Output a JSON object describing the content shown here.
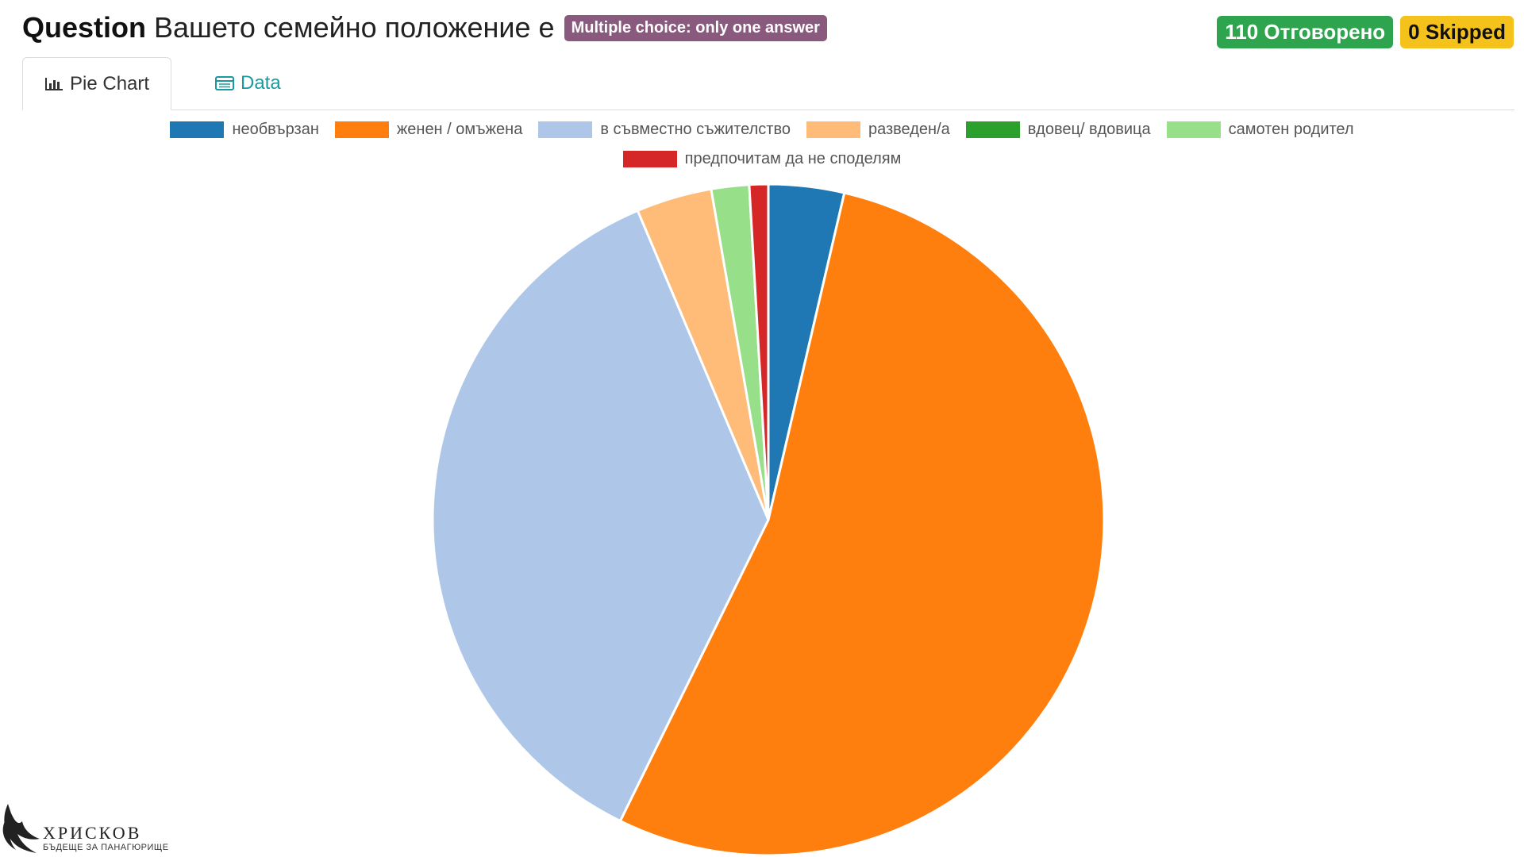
{
  "header": {
    "label": "Question",
    "question": "Вашето семейно положение е",
    "type_badge": "Multiple choice: only one answer"
  },
  "badges": {
    "answered": "110 Отговорено",
    "skipped": "0 Skipped",
    "answered_color": "#2ea44f",
    "skipped_color": "#f5c21b"
  },
  "tabs": [
    {
      "label": "Pie Chart",
      "icon": "bar-chart-icon",
      "active": true
    },
    {
      "label": "Data",
      "icon": "table-icon",
      "active": false
    }
  ],
  "chart_data": {
    "type": "pie",
    "title": "",
    "legend_position": "top",
    "start_angle": "12 o'clock, clockwise",
    "slices": [
      {
        "label": "необвързан",
        "value": 4,
        "color": "#1f77b4"
      },
      {
        "label": "женен / омъжена",
        "value": 59,
        "color": "#ff7f0e"
      },
      {
        "label": "в съвместно съжителство",
        "value": 40,
        "color": "#aec7e8"
      },
      {
        "label": "разведен/а",
        "value": 4,
        "color": "#ffbb78"
      },
      {
        "label": "вдовец/ вдовица",
        "value": 0,
        "color": "#2ca02c"
      },
      {
        "label": "самотен родител",
        "value": 2,
        "color": "#98df8a"
      },
      {
        "label": "предпочитам да не споделям",
        "value": 1,
        "color": "#d62728"
      }
    ]
  },
  "logo": {
    "name": "ХРИСКОВ",
    "tagline": "БЪДЕЩЕ ЗА ПАНАГЮРИЩЕ"
  }
}
